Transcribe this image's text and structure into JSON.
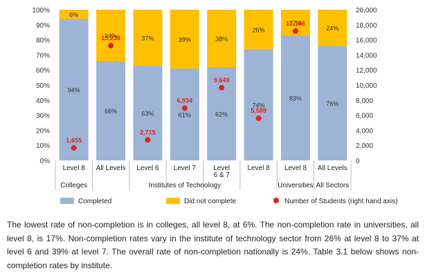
{
  "chart_data": {
    "type": "bar",
    "stacked": true,
    "categories": [
      "Level 8",
      "All Levels",
      "Level 6",
      "Level 7",
      "Level\n6 & 7",
      "Level 8",
      "Level 8",
      "All Levels"
    ],
    "groups": [
      {
        "label": "Colleges",
        "span": [
          0,
          0
        ]
      },
      {
        "label": "Institutes of Technology",
        "span": [
          1,
          5
        ]
      },
      {
        "label": "Universities",
        "span": [
          6,
          6
        ]
      },
      {
        "label": "All Sectors",
        "span": [
          7,
          7
        ]
      }
    ],
    "series": [
      {
        "name": "Completed",
        "color": "#9db4d6",
        "values": [
          94,
          66,
          63,
          61,
          62,
          74,
          83,
          76
        ],
        "labels": [
          "94%",
          "66%",
          "63%",
          "61%",
          "62%",
          "74%",
          "83%",
          "76%"
        ]
      },
      {
        "name": "Did not complete",
        "color": "#ffc000",
        "values": [
          6,
          34,
          37,
          39,
          38,
          26,
          17,
          24
        ],
        "labels": [
          "6%",
          "34%",
          "37%",
          "39%",
          "38%",
          "26%",
          "17%",
          "24%"
        ]
      },
      {
        "name": "Number of Students (right hand axis)",
        "color": "#e0241c",
        "type": "scatter",
        "axis": "right",
        "values": [
          1655,
          15238,
          2715,
          6934,
          9649,
          5589,
          17166,
          null
        ],
        "labels": [
          "1,655",
          "15,238",
          "2,715",
          "6,934",
          "9,649",
          "5,589",
          "17,166",
          ""
        ]
      }
    ],
    "y_left": {
      "min": 0,
      "max": 100,
      "ticks": [
        "0%",
        "10%",
        "20%",
        "30%",
        "40%",
        "50%",
        "60%",
        "70%",
        "80%",
        "90%",
        "100%"
      ]
    },
    "y_right": {
      "min": 0,
      "max": 20000,
      "ticks": [
        "0",
        "2,000",
        "4,000",
        "6,000",
        "8,000",
        "10,000",
        "12,000",
        "14,000",
        "16,000",
        "18,000",
        "20,000"
      ]
    },
    "legend_position": "bottom",
    "grid": false
  },
  "caption": "The lowest rate of non-completion is in colleges, all level 8, at 6%. The non-completion rate in universities, all level 8, is 17%. Non-completion rates vary in the institute of technology sector from 26% at level 8 to 37% at level 6 and 39% at level 7. The overall rate of non-completion nationally is 24%. Table 3.1 below shows non-completion rates by institute."
}
